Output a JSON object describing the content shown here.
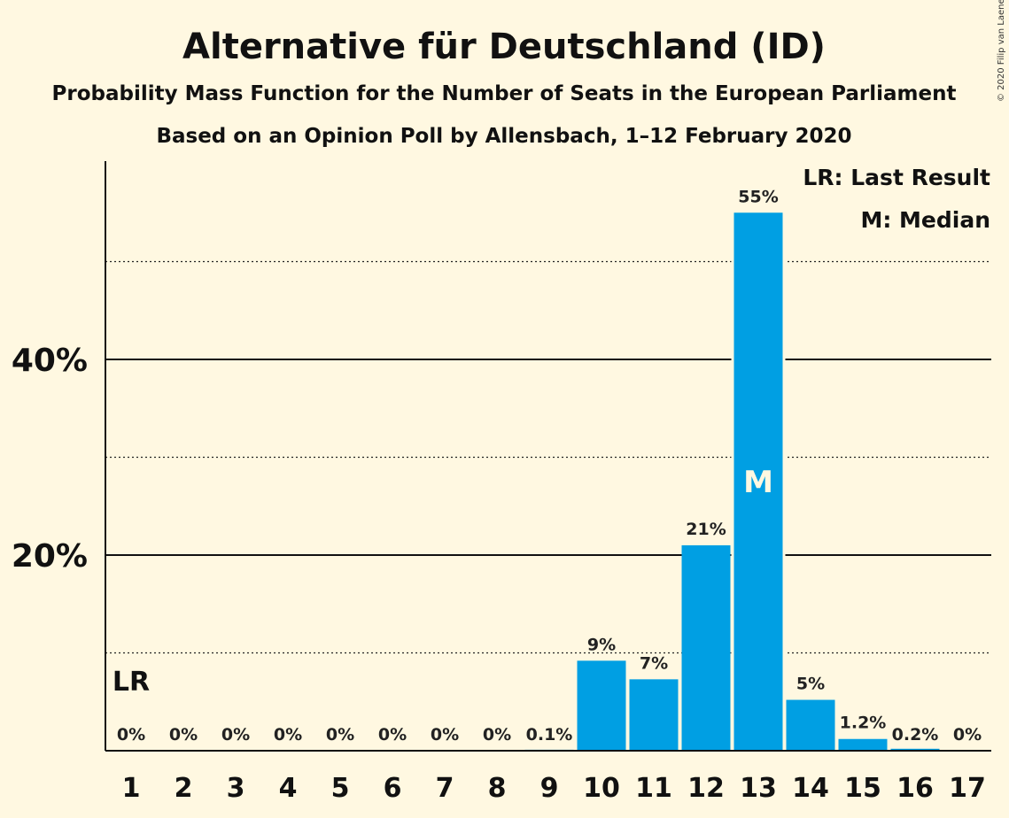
{
  "chart_data": {
    "type": "bar",
    "title": "Alternative für Deutschland (ID)",
    "subtitle_1": "Probability Mass Function for the Number of Seats in the European Parliament",
    "subtitle_2": "Based on an Opinion Poll by Allensbach, 1–12 February 2020",
    "categories": [
      "1",
      "2",
      "3",
      "4",
      "5",
      "6",
      "7",
      "8",
      "9",
      "10",
      "11",
      "12",
      "13",
      "14",
      "15",
      "16",
      "17"
    ],
    "values": [
      0,
      0,
      0,
      0,
      0,
      0,
      0,
      0,
      0.1,
      9.2,
      7.3,
      21,
      55,
      5.2,
      1.2,
      0.2,
      0
    ],
    "data_labels": [
      "0%",
      "0%",
      "0%",
      "0%",
      "0%",
      "0%",
      "0%",
      "0%",
      "0.1%",
      "9%",
      "7%",
      "21%",
      "55%",
      "5%",
      "1.2%",
      "0.2%",
      "0%"
    ],
    "ylim": [
      0,
      60
    ],
    "yticks": [
      20,
      40
    ],
    "ytick_labels": [
      "20%",
      "40%"
    ],
    "dotted_gridlines": [
      10,
      30,
      50
    ],
    "last_result_category": "1",
    "last_result_label": "LR",
    "median_category": "13",
    "median_label": "M",
    "legend": {
      "placement": "top-right",
      "entries": [
        "LR: Last Result",
        "M: Median"
      ]
    },
    "bar_color": "#009fe3",
    "background_color": "#fff8e1",
    "copyright": "© 2020 Filip van Laenen"
  }
}
